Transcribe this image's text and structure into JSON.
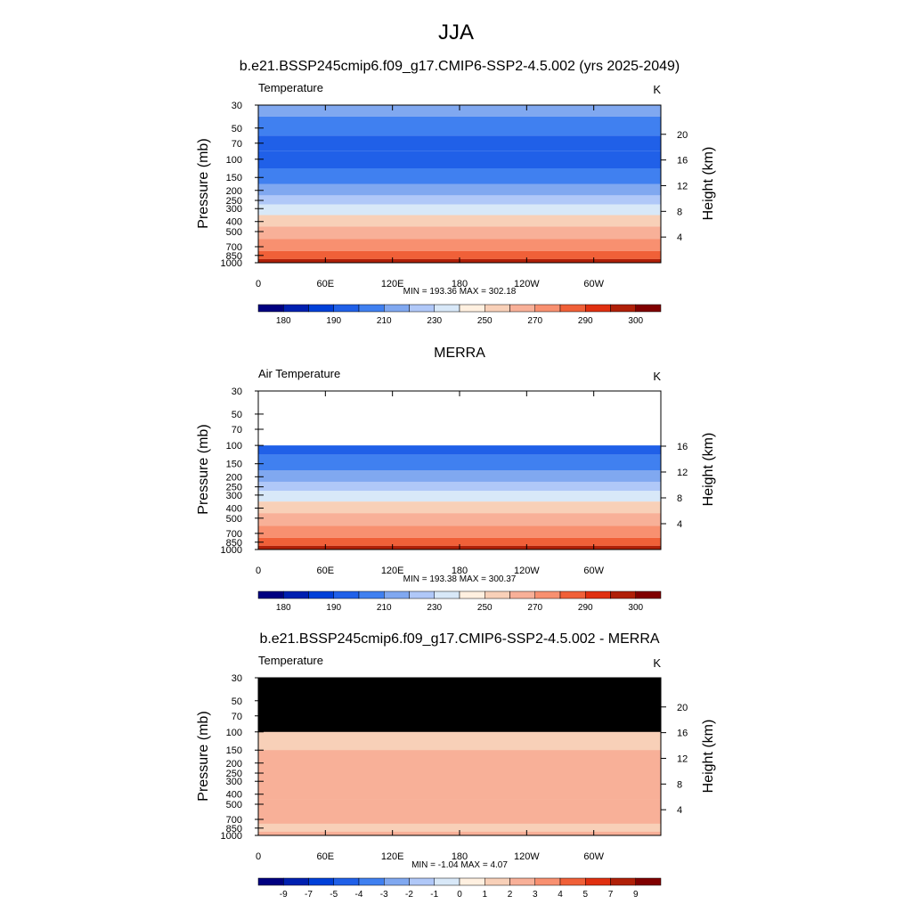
{
  "title": "JJA",
  "chart_data": [
    {
      "type": "heatmap",
      "title": "b.e21.BSSP245cmip6.f09_g17.CMIP6-SSP2-4.5.002 (yrs 2025-2049)",
      "left_label": "Temperature",
      "units": "K",
      "xlabel": "",
      "ylabel": "Pressure (mb)",
      "y2label": "Height (km)",
      "x_ticks": [
        "0",
        "60E",
        "120E",
        "180",
        "120W",
        "60W"
      ],
      "y_ticks": [
        "30",
        "50",
        "70",
        "100",
        "150",
        "200",
        "250",
        "300",
        "400",
        "500",
        "700",
        "850",
        "1000"
      ],
      "y2_ticks": [
        "4",
        "8",
        "12",
        "16",
        "20"
      ],
      "y_scale": "log",
      "ylim": [
        1000,
        30
      ],
      "xlim": [
        0,
        360
      ],
      "stats": "MIN = 193.36  MAX = 302.18",
      "colorbar_labels": [
        "180",
        "190",
        "210",
        "230",
        "250",
        "270",
        "290",
        "300"
      ],
      "level_profile": [
        [
          30,
          210
        ],
        [
          50,
          202
        ],
        [
          70,
          198
        ],
        [
          100,
          198
        ],
        [
          150,
          206
        ],
        [
          200,
          216
        ],
        [
          250,
          226
        ],
        [
          300,
          236
        ],
        [
          400,
          250
        ],
        [
          500,
          260
        ],
        [
          700,
          276
        ],
        [
          850,
          284
        ],
        [
          1000,
          296
        ]
      ],
      "min": 193.36,
      "max": 302.18
    },
    {
      "type": "heatmap",
      "title": "MERRA",
      "left_label": "Air Temperature",
      "units": "K",
      "xlabel": "",
      "ylabel": "Pressure (mb)",
      "y2label": "Height (km)",
      "x_ticks": [
        "0",
        "60E",
        "120E",
        "180",
        "120W",
        "60W"
      ],
      "y_ticks": [
        "30",
        "50",
        "70",
        "100",
        "150",
        "200",
        "250",
        "300",
        "400",
        "500",
        "700",
        "850",
        "1000"
      ],
      "y2_ticks": [
        "4",
        "8",
        "12",
        "16"
      ],
      "y_scale": "log",
      "ylim": [
        1000,
        30
      ],
      "xlim": [
        0,
        360
      ],
      "stats": "MIN = 193.38  MAX = 300.37",
      "colorbar_labels": [
        "180",
        "190",
        "210",
        "230",
        "250",
        "270",
        "290",
        "300"
      ],
      "level_profile": [
        [
          100,
          198
        ],
        [
          150,
          206
        ],
        [
          200,
          216
        ],
        [
          250,
          226
        ],
        [
          300,
          236
        ],
        [
          400,
          250
        ],
        [
          500,
          260
        ],
        [
          700,
          276
        ],
        [
          850,
          284
        ],
        [
          1000,
          296
        ]
      ],
      "min": 193.38,
      "max": 300.37
    },
    {
      "type": "heatmap",
      "title": "b.e21.BSSP245cmip6.f09_g17.CMIP6-SSP2-4.5.002 - MERRA",
      "left_label": "Temperature",
      "units": "K",
      "xlabel": "",
      "ylabel": "Pressure (mb)",
      "y2label": "Height (km)",
      "x_ticks": [
        "0",
        "60E",
        "120E",
        "180",
        "120W",
        "60W"
      ],
      "y_ticks": [
        "30",
        "50",
        "70",
        "100",
        "150",
        "200",
        "250",
        "300",
        "400",
        "500",
        "700",
        "850",
        "1000"
      ],
      "y2_ticks": [
        "4",
        "8",
        "12",
        "16",
        "20"
      ],
      "y_scale": "log",
      "ylim": [
        1000,
        30
      ],
      "xlim": [
        0,
        360
      ],
      "stats": "MIN = -1.04  MAX =  4.07",
      "colorbar_labels": [
        "-9",
        "-7",
        "-5",
        "-4",
        "-3",
        "-2",
        "-1",
        "0",
        "1",
        "2",
        "3",
        "4",
        "5",
        "7",
        "9"
      ],
      "level_profile": [
        [
          150,
          2
        ],
        [
          200,
          2.6
        ],
        [
          300,
          2.2
        ],
        [
          400,
          2.4
        ],
        [
          500,
          2.2
        ],
        [
          700,
          2
        ],
        [
          850,
          1.2
        ],
        [
          1000,
          2
        ]
      ],
      "min": -1.04,
      "max": 4.07
    }
  ],
  "palette": [
    "#000080",
    "#0020b0",
    "#0040d8",
    "#2060e8",
    "#4080f0",
    "#80a8f0",
    "#b0c8f8",
    "#d8e8f8",
    "#fff0e0",
    "#f8d0b8",
    "#f8b098",
    "#f89070",
    "#f06038",
    "#e03010",
    "#b02008",
    "#800000"
  ],
  "contour_levels_k": [
    180,
    185,
    190,
    200,
    210,
    220,
    230,
    240,
    250,
    260,
    270,
    280,
    290,
    295,
    300
  ],
  "contour_levels_diff": [
    -9,
    -7,
    -5,
    -4,
    -3,
    -2,
    -1,
    0,
    1,
    2,
    3,
    4,
    5,
    7,
    9
  ],
  "masked_color": "#000000"
}
